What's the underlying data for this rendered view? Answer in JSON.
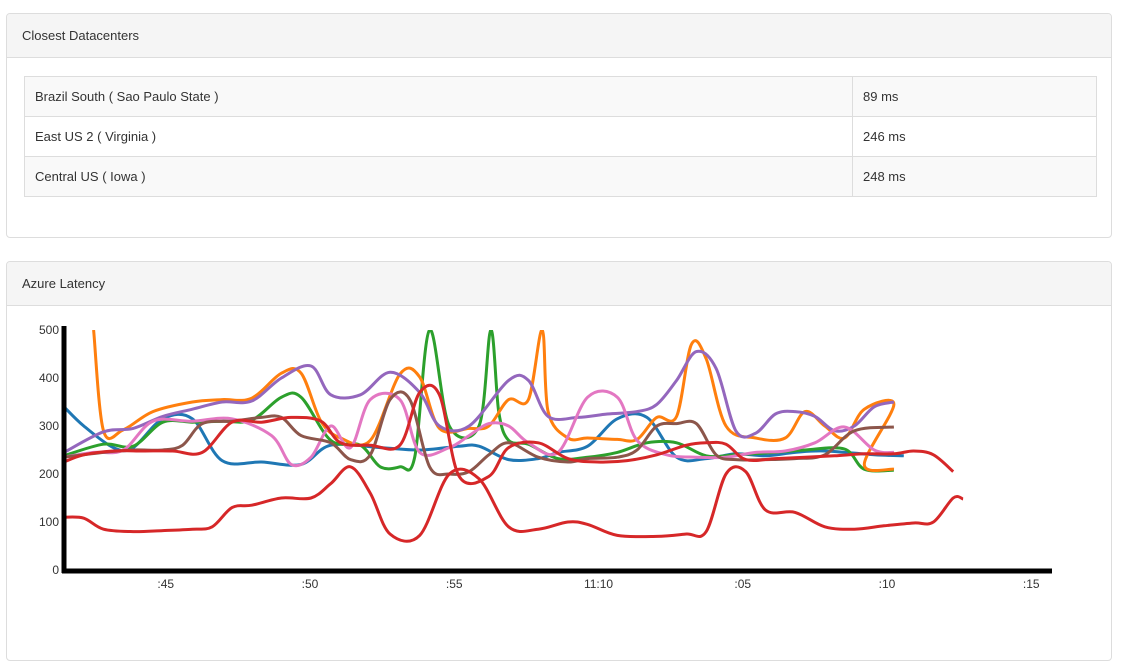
{
  "datacenters_panel": {
    "title": "Closest Datacenters",
    "rows": [
      {
        "name": "Brazil South ( Sao Paulo State )",
        "latency": "89 ms"
      },
      {
        "name": "East US 2 ( Virginia )",
        "latency": "246 ms"
      },
      {
        "name": "Central US ( Iowa )",
        "latency": "248 ms"
      }
    ]
  },
  "latency_panel": {
    "title": "Azure Latency"
  },
  "colors": {
    "blue": "#1f77b4",
    "green": "#2ca02c",
    "orange": "#ff7f0e",
    "purple": "#9467bd",
    "pink": "#e377c2",
    "brown": "#8c564b",
    "red": "#d62728",
    "axis": "#000000"
  },
  "chart_data": {
    "type": "line",
    "xlabel": "",
    "ylabel": "",
    "ylim": [
      0,
      500
    ],
    "xlim": [
      0,
      100
    ],
    "grid": false,
    "y_ticks": [
      0,
      100,
      200,
      300,
      400,
      500
    ],
    "x_ticks": [
      {
        "x": 10.3,
        "label": ":45"
      },
      {
        "x": 24.9,
        "label": ":50"
      },
      {
        "x": 39.5,
        "label": ":55"
      },
      {
        "x": 54.1,
        "label": "11:10"
      },
      {
        "x": 68.7,
        "label": ":05"
      },
      {
        "x": 83.3,
        "label": ":10"
      },
      {
        "x": 97.9,
        "label": ":15"
      }
    ],
    "series": [
      {
        "color": "blue",
        "points": [
          [
            0,
            340
          ],
          [
            2,
            300
          ],
          [
            5,
            255
          ],
          [
            7,
            255
          ],
          [
            10,
            315
          ],
          [
            13,
            315
          ],
          [
            16,
            228
          ],
          [
            20,
            225
          ],
          [
            24,
            220
          ],
          [
            27,
            260
          ],
          [
            32,
            255
          ],
          [
            36,
            250
          ],
          [
            40,
            258
          ],
          [
            42,
            258
          ],
          [
            45,
            230
          ],
          [
            48,
            232
          ],
          [
            50,
            245
          ],
          [
            53,
            258
          ],
          [
            56,
            315
          ],
          [
            59,
            318
          ],
          [
            62,
            235
          ],
          [
            65,
            232
          ],
          [
            68,
            242
          ],
          [
            71,
            238
          ],
          [
            74,
            245
          ],
          [
            77,
            248
          ],
          [
            82,
            240
          ],
          [
            85,
            238
          ]
        ]
      },
      {
        "color": "green",
        "points": [
          [
            0,
            238
          ],
          [
            4,
            262
          ],
          [
            7,
            258
          ],
          [
            10,
            308
          ],
          [
            13,
            308
          ],
          [
            16,
            310
          ],
          [
            19,
            312
          ],
          [
            22,
            360
          ],
          [
            24,
            360
          ],
          [
            27,
            270
          ],
          [
            30,
            260
          ],
          [
            32,
            215
          ],
          [
            34,
            215
          ],
          [
            35.5,
            235
          ],
          [
            37,
            500
          ],
          [
            39,
            300
          ],
          [
            42,
            300
          ],
          [
            43.2,
            500
          ],
          [
            44,
            330
          ],
          [
            45,
            270
          ],
          [
            47,
            262
          ],
          [
            50,
            232
          ],
          [
            53,
            235
          ],
          [
            56,
            245
          ],
          [
            59,
            265
          ],
          [
            62,
            265
          ],
          [
            65,
            238
          ],
          [
            68,
            240
          ],
          [
            72,
            245
          ],
          [
            75,
            250
          ],
          [
            79,
            252
          ],
          [
            81,
            210
          ],
          [
            84,
            208
          ]
        ]
      },
      {
        "color": "orange",
        "points": [
          [
            3,
            500
          ],
          [
            4,
            290
          ],
          [
            6,
            292
          ],
          [
            9,
            330
          ],
          [
            13,
            350
          ],
          [
            16,
            355
          ],
          [
            19,
            358
          ],
          [
            22,
            410
          ],
          [
            24,
            410
          ],
          [
            26,
            310
          ],
          [
            28,
            275
          ],
          [
            31,
            270
          ],
          [
            34,
            408
          ],
          [
            36,
            402
          ],
          [
            38,
            295
          ],
          [
            41,
            295
          ],
          [
            43,
            300
          ],
          [
            45,
            355
          ],
          [
            47,
            355
          ],
          [
            48.4,
            500
          ],
          [
            49,
            330
          ],
          [
            51,
            275
          ],
          [
            53,
            275
          ],
          [
            56,
            272
          ],
          [
            58,
            272
          ],
          [
            60,
            318
          ],
          [
            62,
            320
          ],
          [
            63.5,
            470
          ],
          [
            65,
            440
          ],
          [
            67,
            300
          ],
          [
            70,
            275
          ],
          [
            73,
            275
          ],
          [
            75,
            330
          ],
          [
            77,
            300
          ],
          [
            79,
            275
          ],
          [
            81,
            335
          ],
          [
            84,
            345
          ],
          [
            81,
            220
          ],
          [
            84,
            210
          ]
        ]
      },
      {
        "color": "purple",
        "points": [
          [
            0,
            245
          ],
          [
            4,
            288
          ],
          [
            7,
            295
          ],
          [
            10,
            320
          ],
          [
            13,
            335
          ],
          [
            16,
            350
          ],
          [
            19,
            352
          ],
          [
            22,
            400
          ],
          [
            25,
            425
          ],
          [
            27,
            365
          ],
          [
            30,
            365
          ],
          [
            33,
            412
          ],
          [
            36,
            370
          ],
          [
            38,
            300
          ],
          [
            41,
            300
          ],
          [
            45,
            395
          ],
          [
            47,
            395
          ],
          [
            49,
            320
          ],
          [
            52,
            318
          ],
          [
            55,
            325
          ],
          [
            58,
            330
          ],
          [
            60,
            345
          ],
          [
            62,
            395
          ],
          [
            64,
            455
          ],
          [
            66,
            420
          ],
          [
            68,
            290
          ],
          [
            70,
            285
          ],
          [
            72,
            325
          ],
          [
            74,
            330
          ],
          [
            76,
            320
          ],
          [
            78,
            290
          ],
          [
            80,
            300
          ],
          [
            82,
            340
          ],
          [
            84,
            350
          ]
        ]
      },
      {
        "color": "pink",
        "points": [
          [
            0,
            235
          ],
          [
            3,
            245
          ],
          [
            6,
            250
          ],
          [
            9,
            310
          ],
          [
            13,
            310
          ],
          [
            17,
            315
          ],
          [
            21,
            280
          ],
          [
            23,
            220
          ],
          [
            25,
            235
          ],
          [
            27,
            300
          ],
          [
            29,
            255
          ],
          [
            31,
            355
          ],
          [
            34,
            355
          ],
          [
            36,
            245
          ],
          [
            39,
            255
          ],
          [
            41,
            280
          ],
          [
            43,
            305
          ],
          [
            45,
            300
          ],
          [
            47,
            265
          ],
          [
            50,
            245
          ],
          [
            53,
            360
          ],
          [
            56,
            360
          ],
          [
            58,
            270
          ],
          [
            61,
            240
          ],
          [
            64,
            235
          ],
          [
            67,
            235
          ],
          [
            70,
            245
          ],
          [
            73,
            248
          ],
          [
            76,
            265
          ],
          [
            79,
            298
          ],
          [
            82,
            250
          ],
          [
            84,
            245
          ]
        ]
      },
      {
        "color": "brown",
        "points": [
          [
            0,
            235
          ],
          [
            4,
            245
          ],
          [
            7,
            250
          ],
          [
            10,
            250
          ],
          [
            12,
            260
          ],
          [
            14,
            305
          ],
          [
            17,
            310
          ],
          [
            20,
            318
          ],
          [
            22,
            318
          ],
          [
            24,
            280
          ],
          [
            27,
            265
          ],
          [
            29,
            230
          ],
          [
            31,
            240
          ],
          [
            33,
            355
          ],
          [
            35,
            355
          ],
          [
            37,
            215
          ],
          [
            39,
            200
          ],
          [
            41,
            205
          ],
          [
            43,
            240
          ],
          [
            45,
            265
          ],
          [
            48,
            235
          ],
          [
            51,
            225
          ],
          [
            53,
            232
          ],
          [
            56,
            235
          ],
          [
            58,
            250
          ],
          [
            60,
            300
          ],
          [
            62,
            305
          ],
          [
            64,
            305
          ],
          [
            66,
            240
          ],
          [
            68,
            230
          ],
          [
            71,
            230
          ],
          [
            74,
            232
          ],
          [
            77,
            240
          ],
          [
            80,
            290
          ],
          [
            84,
            298
          ]
        ]
      },
      {
        "color": "red",
        "points": [
          [
            0,
            110
          ],
          [
            2,
            108
          ],
          [
            4,
            85
          ],
          [
            7,
            80
          ],
          [
            10,
            82
          ],
          [
            13,
            85
          ],
          [
            15,
            90
          ],
          [
            17,
            130
          ],
          [
            19,
            135
          ],
          [
            22,
            150
          ],
          [
            25,
            150
          ],
          [
            27,
            180
          ],
          [
            29,
            215
          ],
          [
            31,
            160
          ],
          [
            33,
            75
          ],
          [
            36,
            72
          ],
          [
            39,
            200
          ],
          [
            42,
            190
          ],
          [
            45,
            90
          ],
          [
            48,
            85
          ],
          [
            51,
            100
          ],
          [
            53,
            95
          ],
          [
            56,
            72
          ],
          [
            60,
            70
          ],
          [
            63,
            75
          ],
          [
            65,
            80
          ],
          [
            67,
            200
          ],
          [
            69,
            205
          ],
          [
            71,
            125
          ],
          [
            74,
            120
          ],
          [
            77,
            90
          ],
          [
            80,
            85
          ],
          [
            83,
            92
          ],
          [
            86,
            98
          ],
          [
            88,
            100
          ],
          [
            90,
            150
          ],
          [
            91,
            148
          ]
        ]
      },
      {
        "color": "red",
        "points": [
          [
            0,
            225
          ],
          [
            2,
            240
          ],
          [
            5,
            248
          ],
          [
            8,
            248
          ],
          [
            11,
            248
          ],
          [
            14,
            245
          ],
          [
            17,
            308
          ],
          [
            20,
            308
          ],
          [
            23,
            318
          ],
          [
            26,
            310
          ],
          [
            28,
            265
          ],
          [
            31,
            260
          ],
          [
            34,
            260
          ],
          [
            36,
            370
          ],
          [
            38,
            365
          ],
          [
            40,
            195
          ],
          [
            43,
            195
          ],
          [
            45,
            255
          ],
          [
            48,
            265
          ],
          [
            51,
            232
          ],
          [
            54,
            225
          ],
          [
            57,
            228
          ],
          [
            60,
            240
          ],
          [
            63,
            260
          ],
          [
            65,
            265
          ],
          [
            67,
            262
          ],
          [
            69,
            230
          ],
          [
            72,
            232
          ],
          [
            75,
            235
          ],
          [
            78,
            238
          ],
          [
            81,
            242
          ],
          [
            84,
            242
          ],
          [
            86,
            248
          ],
          [
            88,
            240
          ],
          [
            90,
            205
          ]
        ]
      }
    ]
  }
}
